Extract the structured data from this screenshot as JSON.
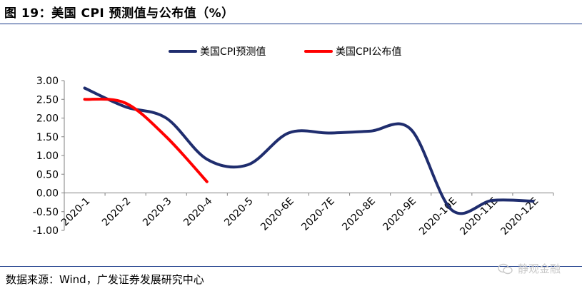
{
  "figure": {
    "title": "图 19：美国 CPI 预测值与公布值（%）",
    "source": "数据来源：Wind，广发证券发展研究中心",
    "watermark": "静观金融"
  },
  "chart_data": {
    "type": "line",
    "categories": [
      "2020-1",
      "2020-2",
      "2020-3",
      "2020-4",
      "2020-5",
      "2020-6E",
      "2020-7E",
      "2020-8E",
      "2020-9E",
      "2020-10E",
      "2020-11E",
      "2020-12E"
    ],
    "series": [
      {
        "name": "美国CPI预测值",
        "color": "#1f2d6e",
        "values": [
          2.8,
          2.3,
          2.0,
          0.9,
          0.75,
          1.6,
          1.6,
          1.65,
          1.7,
          -0.45,
          -0.2,
          -0.22
        ]
      },
      {
        "name": "美国CPI公布值",
        "color": "#ff0000",
        "values": [
          2.5,
          2.4,
          1.5,
          0.3,
          null,
          null,
          null,
          null,
          null,
          null,
          null,
          null
        ]
      }
    ],
    "y_ticks": [
      "3.00",
      "2.50",
      "2.00",
      "1.50",
      "1.00",
      "0.50",
      "0.00",
      "-0.50",
      "-1.00"
    ],
    "ylim": [
      -1.0,
      3.0
    ],
    "grid": false,
    "legend_position": "top"
  }
}
